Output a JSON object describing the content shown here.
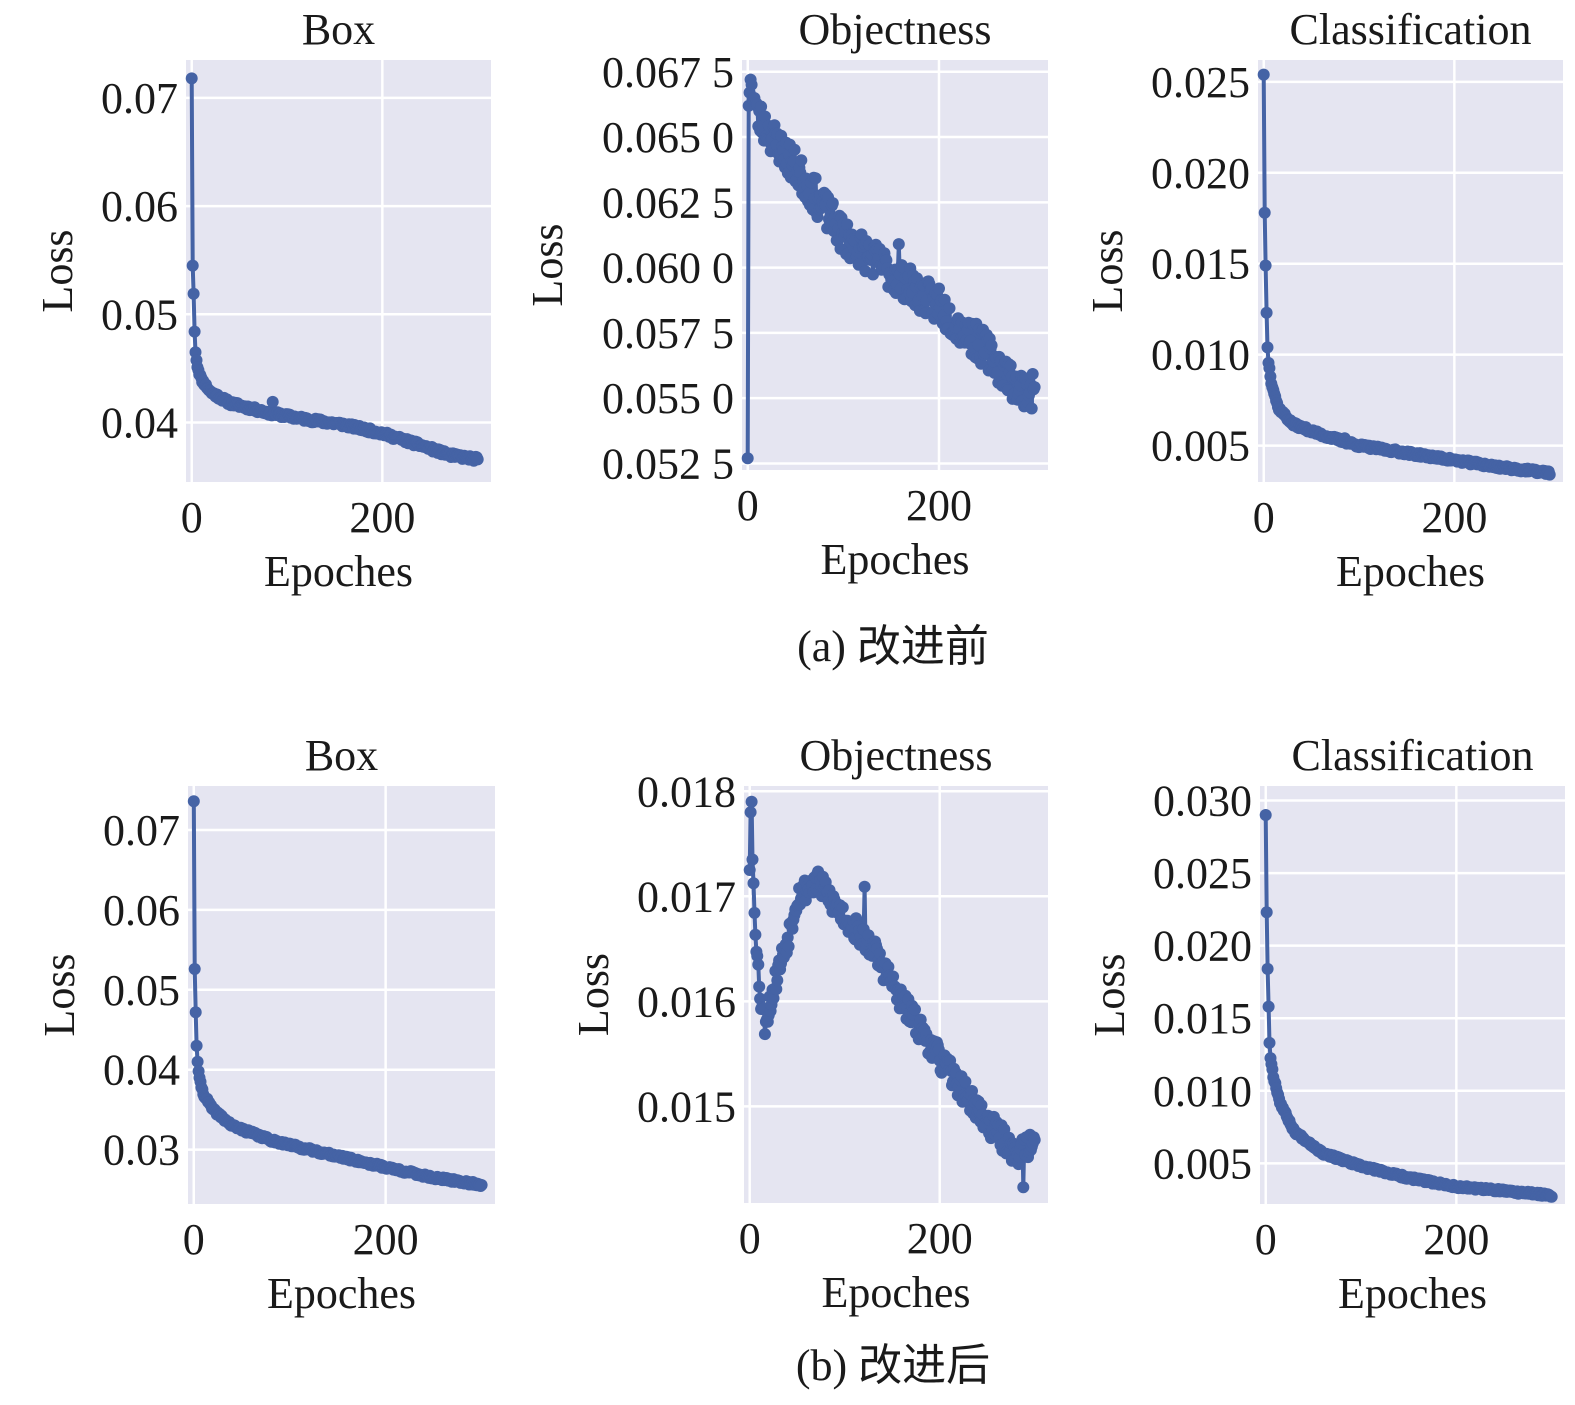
{
  "colors": {
    "plot_bg": "#e5e5f1",
    "grid": "#ffffff",
    "series": "#4563a5",
    "text": "#1a1a1a"
  },
  "captions": {
    "a": "(a) 改进前",
    "b": "(b) 改进后"
  },
  "chart_data": [
    {
      "id": "a-box",
      "type": "line",
      "title": "Box",
      "xlabel": "Epoches",
      "ylabel": "Loss",
      "xlim": [
        -6,
        314
      ],
      "ylim": [
        0.0345,
        0.0735
      ],
      "xticks": [
        0,
        200
      ],
      "xtick_labels": [
        "0",
        "200"
      ],
      "yticks": [
        0.04,
        0.05,
        0.06,
        0.07
      ],
      "ytick_labels": [
        "0.04",
        "0.05",
        "0.06",
        "0.07"
      ],
      "anchors": [
        [
          0,
          0.0718
        ],
        [
          1,
          0.0545
        ],
        [
          2,
          0.0519
        ],
        [
          3,
          0.0484
        ],
        [
          4,
          0.0465
        ],
        [
          6,
          0.0452
        ],
        [
          10,
          0.044
        ],
        [
          20,
          0.0428
        ],
        [
          40,
          0.0418
        ],
        [
          80,
          0.0409
        ],
        [
          120,
          0.0403
        ],
        [
          160,
          0.0398
        ],
        [
          200,
          0.039
        ],
        [
          240,
          0.0379
        ],
        [
          270,
          0.037
        ],
        [
          300,
          0.0366
        ]
      ],
      "spikes": [
        [
          85,
          0.0419
        ]
      ],
      "noise": 0.0002,
      "seed": 11
    },
    {
      "id": "a-obj",
      "type": "line",
      "title": "Objectness",
      "xlabel": "Epoches",
      "ylabel": "Loss",
      "xlim": [
        -6,
        314
      ],
      "ylim": [
        0.05225,
        0.06795
      ],
      "xticks": [
        0,
        200
      ],
      "xtick_labels": [
        "0",
        "200"
      ],
      "yticks": [
        0.0525,
        0.055,
        0.0575,
        0.06,
        0.0625,
        0.065,
        0.0675
      ],
      "ytick_labels": [
        "0.052 5",
        "0.055 0",
        "0.057 5",
        "0.060 0",
        "0.062 5",
        "0.065 0",
        "0.067 5"
      ],
      "anchors": [
        [
          0,
          0.0527
        ],
        [
          1,
          0.0662
        ],
        [
          3,
          0.0672
        ],
        [
          10,
          0.0658
        ],
        [
          30,
          0.0648
        ],
        [
          60,
          0.0633
        ],
        [
          100,
          0.0612
        ],
        [
          150,
          0.0598
        ],
        [
          200,
          0.0585
        ],
        [
          250,
          0.0568
        ],
        [
          280,
          0.0555
        ],
        [
          300,
          0.0552
        ]
      ],
      "spikes": [
        [
          158,
          0.0609
        ],
        [
          200,
          0.0592
        ],
        [
          287,
          0.0549
        ]
      ],
      "noise": 0.0007,
      "seed": 23
    },
    {
      "id": "a-cls",
      "type": "line",
      "title": "Classification",
      "xlabel": "Epoches",
      "ylabel": "Loss",
      "xlim": [
        -6,
        314
      ],
      "ylim": [
        0.003,
        0.0262
      ],
      "xticks": [
        0,
        200
      ],
      "xtick_labels": [
        "0",
        "200"
      ],
      "yticks": [
        0.005,
        0.01,
        0.015,
        0.02,
        0.025
      ],
      "ytick_labels": [
        "0.005",
        "0.010",
        "0.015",
        "0.020",
        "0.025"
      ],
      "anchors": [
        [
          0,
          0.0254
        ],
        [
          1,
          0.0178
        ],
        [
          2,
          0.0149
        ],
        [
          3,
          0.0123
        ],
        [
          4,
          0.0104
        ],
        [
          5,
          0.0096
        ],
        [
          8,
          0.0085
        ],
        [
          15,
          0.0071
        ],
        [
          30,
          0.0062
        ],
        [
          60,
          0.0056
        ],
        [
          100,
          0.005
        ],
        [
          150,
          0.0046
        ],
        [
          200,
          0.0042
        ],
        [
          250,
          0.0038
        ],
        [
          300,
          0.0035
        ]
      ],
      "spikes": [
        [
          85,
          0.0054
        ]
      ],
      "noise": 0.0001,
      "seed": 37
    },
    {
      "id": "b-box",
      "type": "line",
      "title": "Box",
      "xlabel": "Epoches",
      "ylabel": "Loss",
      "xlim": [
        -6,
        314
      ],
      "ylim": [
        0.0232,
        0.0755
      ],
      "xticks": [
        0,
        200
      ],
      "xtick_labels": [
        "0",
        "200"
      ],
      "yticks": [
        0.03,
        0.04,
        0.05,
        0.06,
        0.07
      ],
      "ytick_labels": [
        "0.03",
        "0.04",
        "0.05",
        "0.06",
        "0.07"
      ],
      "anchors": [
        [
          0,
          0.0736
        ],
        [
          1,
          0.0526
        ],
        [
          2,
          0.0472
        ],
        [
          3,
          0.043
        ],
        [
          4,
          0.041
        ],
        [
          6,
          0.0388
        ],
        [
          10,
          0.037
        ],
        [
          20,
          0.035
        ],
        [
          40,
          0.033
        ],
        [
          80,
          0.0312
        ],
        [
          120,
          0.03
        ],
        [
          160,
          0.0289
        ],
        [
          200,
          0.0278
        ],
        [
          250,
          0.0265
        ],
        [
          300,
          0.0256
        ]
      ],
      "spikes": [],
      "noise": 0.0002,
      "seed": 41
    },
    {
      "id": "b-obj",
      "type": "line",
      "title": "Objectness",
      "xlabel": "Epoches",
      "ylabel": "Loss",
      "xlim": [
        -6,
        314
      ],
      "ylim": [
        0.01408,
        0.01805
      ],
      "xticks": [
        0,
        200
      ],
      "xtick_labels": [
        "0",
        "200"
      ],
      "yticks": [
        0.015,
        0.016,
        0.017,
        0.018
      ],
      "ytick_labels": [
        "0.015",
        "0.016",
        "0.017",
        "0.018"
      ],
      "anchors": [
        [
          0,
          0.01725
        ],
        [
          1,
          0.0178
        ],
        [
          2,
          0.0179
        ],
        [
          3,
          0.01735
        ],
        [
          5,
          0.0169
        ],
        [
          8,
          0.0164
        ],
        [
          12,
          0.016
        ],
        [
          16,
          0.0158
        ],
        [
          22,
          0.016
        ],
        [
          30,
          0.0163
        ],
        [
          40,
          0.0166
        ],
        [
          50,
          0.017
        ],
        [
          70,
          0.01715
        ],
        [
          100,
          0.0168
        ],
        [
          130,
          0.0165
        ],
        [
          160,
          0.016
        ],
        [
          200,
          0.01545
        ],
        [
          250,
          0.01485
        ],
        [
          280,
          0.01455
        ],
        [
          300,
          0.01465
        ]
      ],
      "spikes": [
        [
          121,
          0.01709
        ],
        [
          288,
          0.01423
        ]
      ],
      "noise": 0.00012,
      "seed": 53
    },
    {
      "id": "b-cls",
      "type": "line",
      "title": "Classification",
      "xlabel": "Epoches",
      "ylabel": "Loss",
      "xlim": [
        -6,
        314
      ],
      "ylim": [
        0.0022,
        0.031
      ],
      "xticks": [
        0,
        200
      ],
      "xtick_labels": [
        "0",
        "200"
      ],
      "yticks": [
        0.005,
        0.01,
        0.015,
        0.02,
        0.025,
        0.03
      ],
      "ytick_labels": [
        "0.005",
        "0.010",
        "0.015",
        "0.020",
        "0.025",
        "0.030"
      ],
      "anchors": [
        [
          0,
          0.029
        ],
        [
          1,
          0.0223
        ],
        [
          2,
          0.0184
        ],
        [
          3,
          0.0158
        ],
        [
          4,
          0.0133
        ],
        [
          5,
          0.0123
        ],
        [
          8,
          0.011
        ],
        [
          15,
          0.0092
        ],
        [
          30,
          0.0072
        ],
        [
          60,
          0.0057
        ],
        [
          100,
          0.0048
        ],
        [
          150,
          0.004
        ],
        [
          200,
          0.0034
        ],
        [
          250,
          0.0031
        ],
        [
          300,
          0.0028
        ]
      ],
      "spikes": [],
      "noise": 0.0001,
      "seed": 67
    }
  ]
}
